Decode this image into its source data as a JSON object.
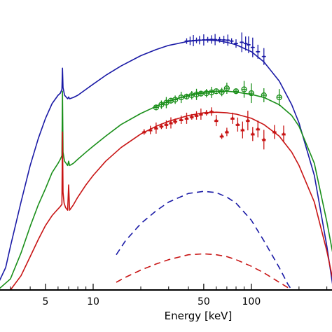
{
  "chart_data": {
    "type": "line",
    "xlabel": "Energy [keV]",
    "x_scale": "log",
    "xlim": [
      2.5,
      330
    ],
    "y_scale": "log",
    "ylim": [
      1,
      1000
    ],
    "xticks": [
      {
        "value": 5,
        "label": "5"
      },
      {
        "value": 10,
        "label": "10"
      },
      {
        "value": 50,
        "label": "50"
      },
      {
        "value": 100,
        "label": "100"
      }
    ],
    "minor_xticks": [
      3,
      4,
      6,
      7,
      8,
      9,
      20,
      30,
      40,
      60,
      70,
      80,
      90,
      200,
      300
    ],
    "series": [
      {
        "color": "#1a1aa6",
        "style": "solid",
        "x": [
          2.5,
          2.8,
          3.0,
          3.5,
          4.0,
          4.5,
          5.0,
          5.5,
          6.0,
          6.2,
          6.35,
          6.4,
          6.45,
          6.6,
          6.9,
          7.0,
          7.1,
          7.5,
          8.0,
          9.0,
          10,
          12,
          15,
          20,
          25,
          30,
          40,
          50,
          60,
          70,
          80,
          100,
          120,
          150,
          180,
          200,
          250,
          300,
          330
        ],
        "y": [
          1.15,
          1.7,
          2.8,
          8,
          19,
          36,
          58,
          82,
          100,
          105,
          115,
          190,
          120,
          100,
          92,
          96,
          92,
          95,
          100,
          115,
          130,
          160,
          200,
          255,
          295,
          325,
          358,
          370,
          365,
          350,
          330,
          280,
          220,
          140,
          80,
          52,
          15,
          2.8,
          1
        ]
      },
      {
        "color": "#1a1aa6",
        "style": "dashed",
        "x": [
          14,
          16,
          20,
          25,
          30,
          40,
          50,
          60,
          70,
          80,
          100,
          120,
          150,
          170,
          180
        ],
        "y": [
          2.3,
          3.2,
          4.8,
          6.5,
          8.0,
          9.8,
          10.3,
          10.0,
          9.0,
          7.8,
          5.2,
          3.2,
          1.7,
          1.15,
          1.0
        ]
      },
      {
        "color": "#1a1aa6",
        "style": "points",
        "x": [
          39,
          41,
          43,
          45,
          47,
          50,
          53,
          56,
          59,
          63,
          67,
          71,
          75,
          80,
          87,
          92,
          96,
          102,
          110,
          120
        ],
        "y": [
          360,
          362,
          364,
          366,
          368,
          370,
          372,
          374,
          373,
          372,
          370,
          368,
          360,
          340,
          350,
          340,
          330,
          310,
          280,
          250
        ]
      },
      {
        "color": "#1a8f1a",
        "style": "solid",
        "x": [
          2.5,
          3.0,
          3.5,
          4.0,
          4.5,
          5.0,
          5.5,
          6.0,
          6.2,
          6.35,
          6.4,
          6.45,
          6.6,
          6.9,
          7.0,
          7.1,
          7.5,
          8.0,
          9.0,
          10,
          12,
          15,
          20,
          25,
          30,
          40,
          50,
          60,
          70,
          80,
          100,
          120,
          150,
          180,
          200,
          250,
          300,
          330
        ],
        "y": [
          1,
          1.3,
          2.4,
          4.5,
          7.5,
          11,
          16,
          20,
          22,
          24,
          110,
          26,
          21,
          19,
          21,
          19,
          20,
          22,
          26,
          30,
          38,
          50,
          65,
          77,
          87,
          100,
          108,
          110,
          110,
          108,
          102,
          95,
          80,
          62,
          48,
          20,
          5,
          2.2
        ]
      },
      {
        "color": "#1a8f1a",
        "style": "points",
        "x": [
          25,
          27,
          29,
          31,
          33,
          36,
          39,
          42,
          45,
          48,
          52,
          56,
          60,
          65,
          70,
          80,
          90,
          100,
          120,
          150
        ],
        "y": [
          75,
          80,
          84,
          88,
          90,
          95,
          97,
          100,
          102,
          104,
          105,
          107,
          110,
          108,
          118,
          110,
          115,
          105,
          100,
          95
        ]
      },
      {
        "color": "#c81414",
        "style": "solid",
        "x": [
          3.0,
          3.5,
          4.0,
          4.5,
          5.0,
          5.5,
          5.8,
          6.0,
          6.2,
          6.35,
          6.4,
          6.45,
          6.55,
          6.7,
          6.9,
          7.0,
          7.1,
          7.5,
          8.0,
          9.0,
          10,
          12,
          15,
          20,
          25,
          30,
          40,
          50,
          60,
          70,
          80,
          100,
          120,
          150,
          180,
          200,
          250,
          300,
          330
        ],
        "y": [
          1,
          1.4,
          2.2,
          3.3,
          4.6,
          5.8,
          6.4,
          6.8,
          7.2,
          7.6,
          42,
          10,
          7.8,
          7.0,
          6.6,
          12,
          6.6,
          7.5,
          9.0,
          12,
          15,
          21,
          29,
          40,
          48,
          54,
          62,
          66,
          67,
          66,
          64,
          58,
          50,
          38,
          26,
          19,
          8,
          2.5,
          1.2
        ]
      },
      {
        "color": "#c81414",
        "style": "dashed",
        "x": [
          14,
          16,
          20,
          25,
          30,
          40,
          50,
          60,
          70,
          80,
          100,
          120,
          150,
          180,
          200,
          220,
          230
        ],
        "y": [
          1.2,
          1.35,
          1.6,
          1.85,
          2.05,
          2.3,
          2.35,
          2.3,
          2.2,
          2.05,
          1.75,
          1.5,
          1.2,
          1.0,
          0.9,
          0.8,
          0.75
        ]
      },
      {
        "color": "#c81414",
        "style": "points",
        "x": [
          21,
          23,
          25,
          27,
          29,
          31,
          33,
          36,
          39,
          42,
          45,
          48,
          52,
          56,
          60,
          65,
          70,
          76,
          82,
          88,
          95,
          102,
          110,
          120,
          140,
          160
        ],
        "y": [
          42,
          44,
          46,
          48,
          50,
          52,
          54,
          56,
          58,
          60,
          62,
          64,
          66,
          68,
          55,
          38,
          42,
          58,
          50,
          44,
          55,
          40,
          45,
          35,
          42,
          40
        ]
      }
    ],
    "grid": false,
    "legend": "none"
  }
}
